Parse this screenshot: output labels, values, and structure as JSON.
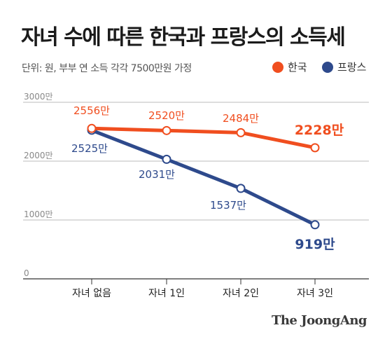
{
  "header": {
    "title": "자녀 수에 따른 한국과 프랑스의 소득세",
    "subtitle": "단위: 원, 부부 연 소득 각각 7500만원 가정"
  },
  "legend": {
    "korea_label": "한국",
    "france_label": "프랑스"
  },
  "credit": "The JoongAng",
  "colors": {
    "korea": "#f04e1f",
    "france": "#2e4a8c",
    "grid": "#bbbbbb"
  },
  "chart_data": {
    "type": "line",
    "categories": [
      "자녀 없음",
      "자녀 1인",
      "자녀 2인",
      "자녀 3인"
    ],
    "series": [
      {
        "name": "한국",
        "values": [
          2556,
          2520,
          2484,
          2228
        ],
        "labels": [
          "2556만",
          "2520만",
          "2484만",
          "2228만"
        ],
        "color": "#f04e1f"
      },
      {
        "name": "프랑스",
        "values": [
          2525,
          2031,
          1537,
          919
        ],
        "labels": [
          "2525만",
          "2031만",
          "1537만",
          "919만"
        ],
        "color": "#2e4a8c"
      }
    ],
    "yticks": [
      0,
      1000,
      2000,
      3000
    ],
    "ytick_labels": [
      "0",
      "1000만",
      "2000만",
      "3000만"
    ],
    "ylim": [
      0,
      3000
    ],
    "grid": true,
    "legend_position": "top-right"
  }
}
